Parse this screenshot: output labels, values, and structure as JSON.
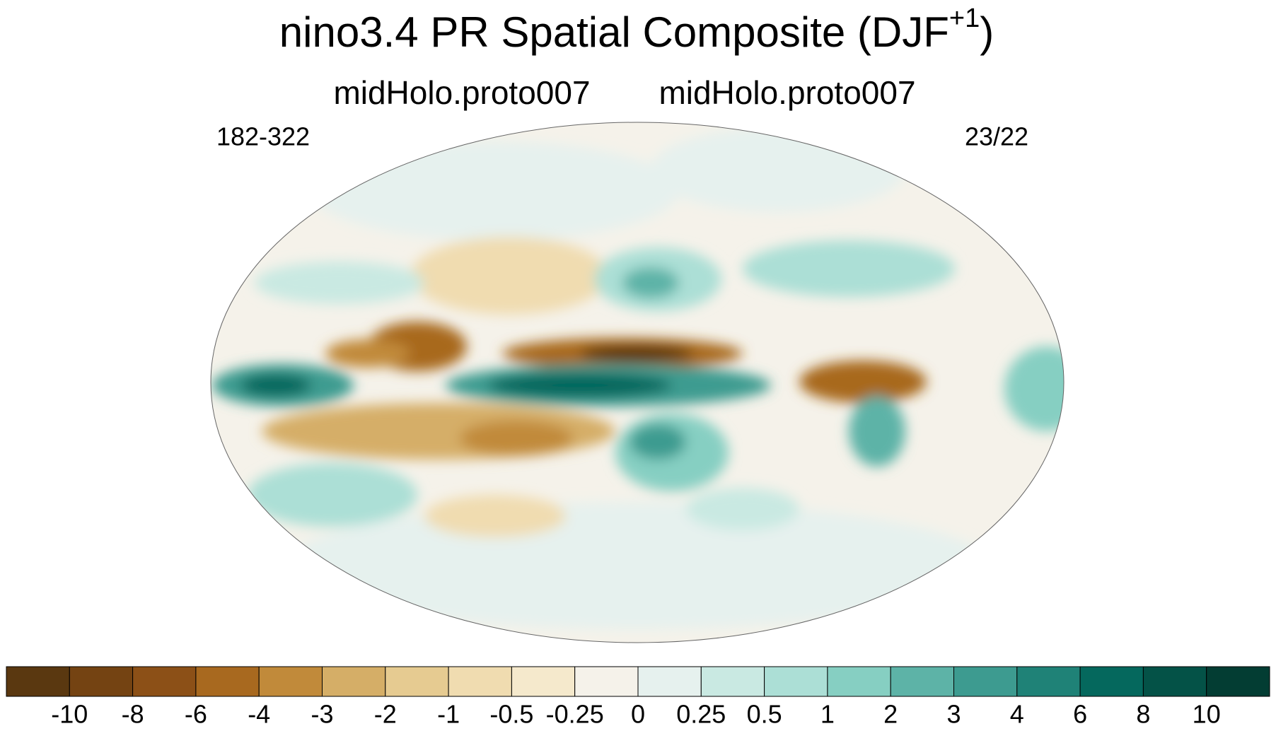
{
  "header": {
    "title": "nino3.4 PR Spatial Composite (DJF",
    "title_superscript": "+1",
    "title_end": ")",
    "subtitle_left": "midHolo.proto007",
    "subtitle_right": "midHolo.proto007",
    "left_label": "182-322",
    "right_label": "23/22"
  },
  "colorbar": {
    "levels": [
      -10,
      -8,
      -6,
      -4,
      -3,
      -2,
      -1,
      -0.5,
      -0.25,
      0,
      0.25,
      0.5,
      1,
      2,
      3,
      4,
      6,
      8,
      10
    ],
    "colors": [
      "#5a3810",
      "#744312",
      "#8c5017",
      "#a8691f",
      "#c18a3a",
      "#d5ae67",
      "#e6cb91",
      "#f0dcb0",
      "#f5e9cc",
      "#f5f2ea",
      "#e6f1ee",
      "#c9e9e2",
      "#acdfd6",
      "#86cfc2",
      "#5db3a7",
      "#3d9b90",
      "#1f8277",
      "#05685d",
      "#045247",
      "#033d33"
    ]
  }
}
